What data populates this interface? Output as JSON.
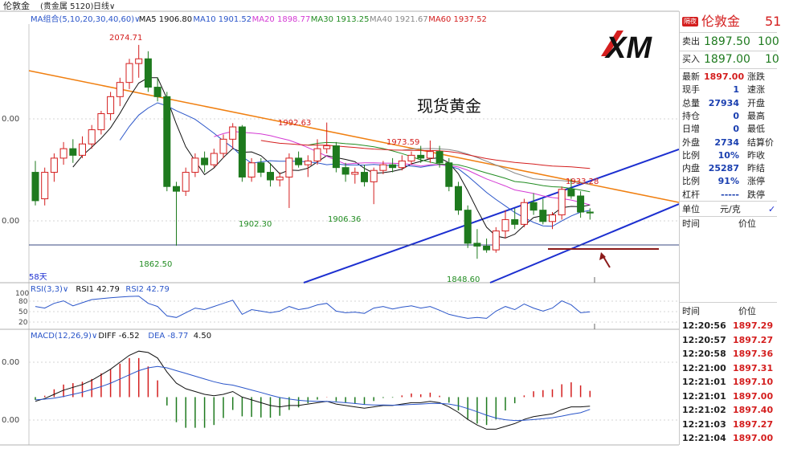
{
  "header": {
    "symbol": "伦敦金",
    "category": "(贵金属 5120)",
    "period": "日线∨"
  },
  "ma_legend": [
    {
      "label": "MA组合(5,10,20,30,40,60)∨",
      "color": "#2a55c9"
    },
    {
      "label": "MA5 1906.80",
      "color": "#111111"
    },
    {
      "label": "MA10 1901.52",
      "color": "#2a55c9"
    },
    {
      "label": "MA20 1898.77",
      "color": "#d43ad4"
    },
    {
      "label": "MA30 1913.25",
      "color": "#218c21"
    },
    {
      "label": "MA40 1921.67",
      "color": "#888888"
    },
    {
      "label": "MA60 1937.52",
      "color": "#d41e1e"
    }
  ],
  "brand": "XM",
  "chart_title": "现货黄金",
  "annotations": {
    "high": "2074.71",
    "p1": "1992.63",
    "p2": "1973.59",
    "p3": "1933.28",
    "l1": "1862.50",
    "l2": "1902.30",
    "l3": "1906.36",
    "l4": "1848.60"
  },
  "axis": {
    "price_tick_1": "0.00",
    "price_tick_2": "0.00",
    "days_label": "58天",
    "rsi_ticks": [
      "100",
      "80",
      "50",
      "20"
    ],
    "macd_tick_1": "0.00",
    "macd_tick_2": "0.00"
  },
  "rsi_legend": [
    {
      "label": "RSI(3,3)∨",
      "color": "#2a55c9"
    },
    {
      "label": "RSI1 42.79",
      "color": "#111111"
    },
    {
      "label": "RSI2 42.79",
      "color": "#2a55c9"
    }
  ],
  "macd_legend": [
    {
      "label": "MACD(12,26,9)∨",
      "color": "#2a55c9"
    },
    {
      "label": "DIFF -6.52",
      "color": "#111111"
    },
    {
      "label": "DEA -8.77",
      "color": "#2a55c9"
    },
    {
      "label": "4.50",
      "color": "#111111"
    }
  ],
  "quote_panel": {
    "badge": "隔夜",
    "name": "伦敦金",
    "code_partial": "51",
    "sell_label": "卖出",
    "sell_price": "1897.50",
    "sell_vol": "100",
    "buy_label": "买入",
    "buy_price": "1897.00",
    "buy_vol": "10",
    "stats": [
      {
        "label": "最新",
        "value": "1897.00",
        "label2": "涨跌",
        "red": true
      },
      {
        "label": "现手",
        "value": "1",
        "label2": "速涨",
        "red": false
      },
      {
        "label": "总量",
        "value": "27934",
        "label2": "开盘",
        "red": false
      },
      {
        "label": "持仓",
        "value": "0",
        "label2": "最高",
        "red": false
      },
      {
        "label": "日增",
        "value": "0",
        "label2": "最低",
        "red": false
      },
      {
        "label": "外盘",
        "value": "2734",
        "label2": "结算价",
        "red": false
      },
      {
        "label": "比例",
        "value": "10%",
        "label2": "昨收",
        "red": false
      },
      {
        "label": "内盘",
        "value": "25287",
        "label2": "昨结",
        "red": false
      },
      {
        "label": "比例",
        "value": "91%",
        "label2": "涨停",
        "red": false
      },
      {
        "label": "杠杆",
        "value": "-----",
        "label2": "跌停",
        "red": false
      }
    ],
    "unit_label": "单位",
    "unit_value": "元/克",
    "time_header": "时间",
    "price_header": "价位",
    "ticks_header_time": "时间",
    "ticks_header_price": "价位",
    "ticks": [
      {
        "time": "12:20:56",
        "price": "1897.29"
      },
      {
        "time": "12:20:57",
        "price": "1897.27"
      },
      {
        "time": "12:20:58",
        "price": "1897.36"
      },
      {
        "time": "12:21:00",
        "price": "1897.31"
      },
      {
        "time": "12:21:01",
        "price": "1897.10"
      },
      {
        "time": "12:21:01",
        "price": "1897.00"
      },
      {
        "time": "12:21:02",
        "price": "1897.40"
      },
      {
        "time": "12:21:03",
        "price": "1897.27"
      },
      {
        "time": "12:21:04",
        "price": "1897.00"
      }
    ]
  },
  "colors": {
    "up": "#d41e1e",
    "down": "#1e7a1e",
    "trendline_orange": "#f07f10",
    "channel_blue": "#1c2fd0",
    "support_line": "#8b1a1a",
    "ma60": "#d41e1e"
  },
  "chart_data": {
    "type": "candlestick",
    "title": "现货黄金",
    "candles": [
      {
        "o": 1940,
        "h": 1952,
        "l": 1905,
        "c": 1910
      },
      {
        "o": 1912,
        "h": 1945,
        "l": 1905,
        "c": 1940
      },
      {
        "o": 1940,
        "h": 1960,
        "l": 1930,
        "c": 1955
      },
      {
        "o": 1955,
        "h": 1972,
        "l": 1948,
        "c": 1965
      },
      {
        "o": 1965,
        "h": 1975,
        "l": 1950,
        "c": 1958
      },
      {
        "o": 1958,
        "h": 1978,
        "l": 1955,
        "c": 1970
      },
      {
        "o": 1970,
        "h": 1990,
        "l": 1965,
        "c": 1985
      },
      {
        "o": 1985,
        "h": 2005,
        "l": 1980,
        "c": 2002
      },
      {
        "o": 2002,
        "h": 2025,
        "l": 1995,
        "c": 2020
      },
      {
        "o": 2020,
        "h": 2040,
        "l": 2010,
        "c": 2035
      },
      {
        "o": 2035,
        "h": 2060,
        "l": 2028,
        "c": 2055
      },
      {
        "o": 2055,
        "h": 2074.71,
        "l": 2040,
        "c": 2060
      },
      {
        "o": 2060,
        "h": 2068,
        "l": 2025,
        "c": 2030
      },
      {
        "o": 2030,
        "h": 2040,
        "l": 2015,
        "c": 2020
      },
      {
        "o": 2020,
        "h": 2025,
        "l": 1920,
        "c": 1925
      },
      {
        "o": 1925,
        "h": 1930,
        "l": 1862.5,
        "c": 1920
      },
      {
        "o": 1920,
        "h": 1945,
        "l": 1915,
        "c": 1940
      },
      {
        "o": 1940,
        "h": 1960,
        "l": 1935,
        "c": 1955
      },
      {
        "o": 1955,
        "h": 1962,
        "l": 1940,
        "c": 1948
      },
      {
        "o": 1948,
        "h": 1965,
        "l": 1945,
        "c": 1960
      },
      {
        "o": 1960,
        "h": 1980,
        "l": 1955,
        "c": 1975
      },
      {
        "o": 1975,
        "h": 1992,
        "l": 1965,
        "c": 1988
      },
      {
        "o": 1988,
        "h": 1990,
        "l": 1930,
        "c": 1935
      },
      {
        "o": 1935,
        "h": 1955,
        "l": 1930,
        "c": 1950
      },
      {
        "o": 1950,
        "h": 1955,
        "l": 1935,
        "c": 1940
      },
      {
        "o": 1940,
        "h": 1950,
        "l": 1925,
        "c": 1932
      },
      {
        "o": 1932,
        "h": 1940,
        "l": 1925,
        "c": 1935
      },
      {
        "o": 1935,
        "h": 1960,
        "l": 1902.3,
        "c": 1955
      },
      {
        "o": 1955,
        "h": 1962,
        "l": 1945,
        "c": 1948
      },
      {
        "o": 1948,
        "h": 1958,
        "l": 1935,
        "c": 1952
      },
      {
        "o": 1952,
        "h": 1975,
        "l": 1948,
        "c": 1965
      },
      {
        "o": 1965,
        "h": 1992.63,
        "l": 1960,
        "c": 1968
      },
      {
        "o": 1968,
        "h": 1972,
        "l": 1940,
        "c": 1945
      },
      {
        "o": 1945,
        "h": 1950,
        "l": 1930,
        "c": 1938
      },
      {
        "o": 1938,
        "h": 1945,
        "l": 1928,
        "c": 1940
      },
      {
        "o": 1940,
        "h": 1948,
        "l": 1925,
        "c": 1930
      },
      {
        "o": 1930,
        "h": 1945,
        "l": 1906.36,
        "c": 1942
      },
      {
        "o": 1942,
        "h": 1952,
        "l": 1938,
        "c": 1948
      },
      {
        "o": 1948,
        "h": 1955,
        "l": 1940,
        "c": 1945
      },
      {
        "o": 1945,
        "h": 1958,
        "l": 1942,
        "c": 1952
      },
      {
        "o": 1952,
        "h": 1962,
        "l": 1948,
        "c": 1958
      },
      {
        "o": 1958,
        "h": 1968,
        "l": 1950,
        "c": 1955
      },
      {
        "o": 1955,
        "h": 1973.59,
        "l": 1950,
        "c": 1962
      },
      {
        "o": 1962,
        "h": 1968,
        "l": 1945,
        "c": 1950
      },
      {
        "o": 1950,
        "h": 1955,
        "l": 1920,
        "c": 1925
      },
      {
        "o": 1925,
        "h": 1930,
        "l": 1895,
        "c": 1900
      },
      {
        "o": 1900,
        "h": 1905,
        "l": 1860,
        "c": 1865
      },
      {
        "o": 1865,
        "h": 1880,
        "l": 1848.6,
        "c": 1862
      },
      {
        "o": 1862,
        "h": 1870,
        "l": 1855,
        "c": 1858
      },
      {
        "o": 1858,
        "h": 1882,
        "l": 1855,
        "c": 1878
      },
      {
        "o": 1878,
        "h": 1900,
        "l": 1870,
        "c": 1890
      },
      {
        "o": 1890,
        "h": 1902,
        "l": 1880,
        "c": 1885
      },
      {
        "o": 1885,
        "h": 1912,
        "l": 1882,
        "c": 1908
      },
      {
        "o": 1908,
        "h": 1918,
        "l": 1895,
        "c": 1900
      },
      {
        "o": 1900,
        "h": 1912,
        "l": 1885,
        "c": 1888
      },
      {
        "o": 1888,
        "h": 1898,
        "l": 1880,
        "c": 1895
      },
      {
        "o": 1895,
        "h": 1925,
        "l": 1890,
        "c": 1922
      },
      {
        "o": 1922,
        "h": 1933.28,
        "l": 1912,
        "c": 1915
      },
      {
        "o": 1915,
        "h": 1920,
        "l": 1892,
        "c": 1898
      },
      {
        "o": 1898,
        "h": 1902,
        "l": 1890,
        "c": 1897
      }
    ],
    "ylim": [
      1825,
      2095
    ],
    "rsi": [
      60,
      55,
      70,
      78,
      62,
      72,
      82,
      85,
      88,
      90,
      92,
      93,
      70,
      60,
      30,
      25,
      40,
      55,
      50,
      60,
      70,
      80,
      35,
      50,
      45,
      40,
      45,
      60,
      50,
      55,
      65,
      70,
      45,
      40,
      42,
      38,
      55,
      60,
      52,
      58,
      62,
      55,
      60,
      48,
      35,
      28,
      22,
      25,
      22,
      45,
      60,
      50,
      68,
      55,
      45,
      55,
      78,
      65,
      40,
      43
    ],
    "rsi_ylim": [
      0,
      100
    ],
    "macd_diff": [
      -3,
      -1,
      2,
      5,
      7,
      9,
      12,
      16,
      20,
      25,
      30,
      33,
      32,
      28,
      18,
      10,
      6,
      4,
      2,
      1,
      2,
      4,
      0,
      -2,
      -4,
      -6,
      -7,
      -6,
      -6,
      -5,
      -4,
      -3,
      -5,
      -6,
      -7,
      -8,
      -7,
      -6,
      -6,
      -5,
      -4,
      -4,
      -3,
      -4,
      -7,
      -11,
      -16,
      -20,
      -23,
      -23,
      -21,
      -19,
      -16,
      -14,
      -13,
      -12,
      -9,
      -7,
      -7,
      -6.52
    ],
    "macd_dea": [
      -2,
      -1.5,
      -0.8,
      0.5,
      2,
      3.5,
      5.5,
      7.5,
      10,
      13,
      16,
      19,
      21,
      22,
      21,
      19,
      17,
      15,
      13,
      11,
      9.5,
      8.6,
      6.9,
      5.1,
      3.3,
      1.4,
      -0.3,
      -1.4,
      -2.3,
      -2.8,
      -3.1,
      -3.1,
      -3.5,
      -4,
      -4.6,
      -5.3,
      -5.6,
      -5.7,
      -5.8,
      -5.6,
      -5.3,
      -5,
      -4.6,
      -4.5,
      -5,
      -6.2,
      -8.2,
      -10.5,
      -13,
      -15,
      -16.2,
      -16.8,
      -16.6,
      -16.1,
      -15.5,
      -14.8,
      -13.6,
      -12.3,
      -11.2,
      -8.77
    ],
    "macd_ylim": [
      -32,
      40
    ]
  }
}
